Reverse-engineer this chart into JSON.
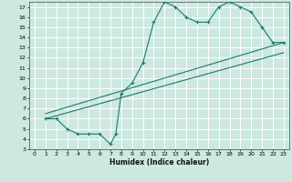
{
  "xlabel": "Humidex (Indice chaleur)",
  "bg_color": "#cce8e0",
  "grid_color": "#ffffff",
  "line_color": "#1a7a6e",
  "xlim": [
    -0.5,
    23.5
  ],
  "ylim": [
    3,
    17.5
  ],
  "xticks": [
    0,
    1,
    2,
    3,
    4,
    5,
    6,
    7,
    8,
    9,
    10,
    11,
    12,
    13,
    14,
    15,
    16,
    17,
    18,
    19,
    20,
    21,
    22,
    23
  ],
  "yticks": [
    3,
    4,
    5,
    6,
    7,
    8,
    9,
    10,
    11,
    12,
    13,
    14,
    15,
    16,
    17
  ],
  "line1_x": [
    1,
    2,
    3,
    4,
    5,
    6,
    7,
    7.5,
    8,
    9,
    10,
    11,
    12,
    13,
    14,
    15,
    16,
    17,
    18,
    19,
    20,
    21,
    22,
    23
  ],
  "line1_y": [
    6,
    6,
    5,
    4.5,
    4.5,
    4.5,
    3.5,
    4.5,
    8.5,
    9.5,
    11.5,
    15.5,
    17.5,
    17,
    16,
    15.5,
    15.5,
    17,
    17.5,
    17,
    16.5,
    15,
    13.5,
    13.5
  ],
  "line2_x": [
    1,
    23
  ],
  "line2_y": [
    6.5,
    13.5
  ],
  "line3_x": [
    1,
    23
  ],
  "line3_y": [
    6.0,
    12.5
  ]
}
